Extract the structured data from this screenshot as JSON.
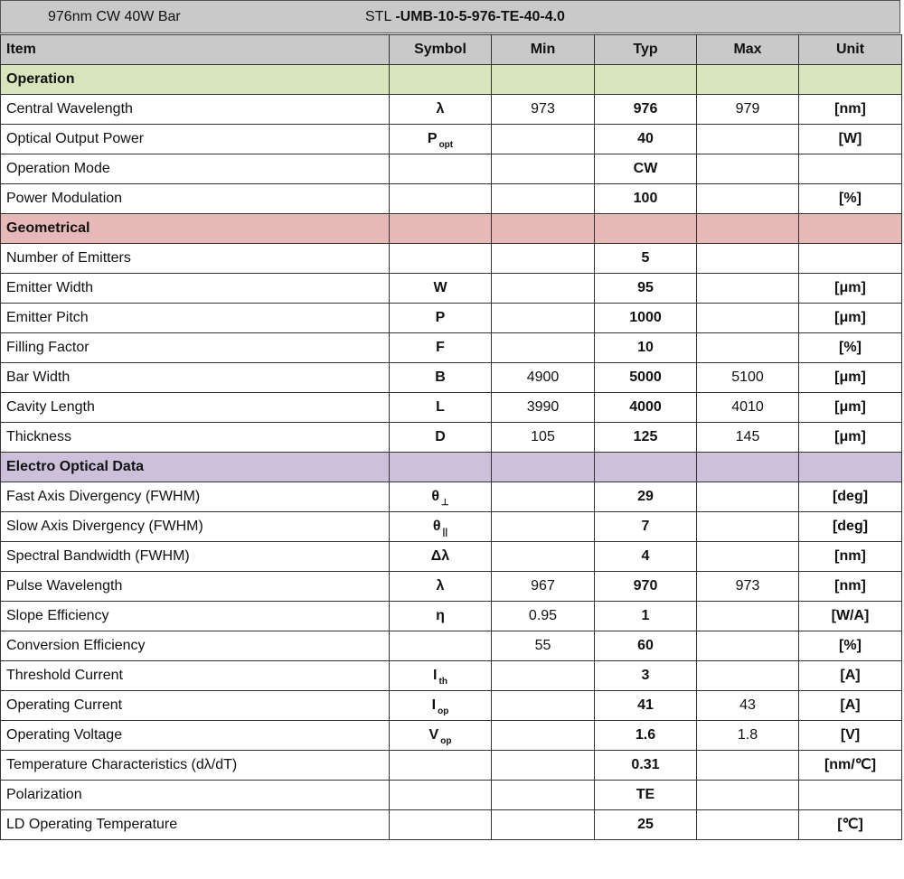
{
  "title": {
    "left": "976nm CW 40W Bar",
    "model_prefix": "STL ",
    "model": "-UMB-10-5-976-TE-40-4.0"
  },
  "columns": [
    "Item",
    "Symbol",
    "Min",
    "Typ",
    "Max",
    "Unit"
  ],
  "colors": {
    "header": "#c9c9c9",
    "operation": "#d8e4bc",
    "geometrical": "#e6b8b7",
    "electro_optical": "#ccc0da"
  },
  "rows": [
    {
      "section": "Operation",
      "color": "#d8e4bc"
    },
    {
      "item": "Central Wavelength",
      "sym": "λ",
      "sub": "",
      "min": "973",
      "typ": "976",
      "max": "979",
      "unit": "[nm]"
    },
    {
      "item": "Optical Output Power",
      "sym": "P",
      "sub": "opt",
      "min": "",
      "typ": "40",
      "max": "",
      "unit": "[W]"
    },
    {
      "item": "Operation Mode",
      "sym": "",
      "sub": "",
      "min": "",
      "typ": "CW",
      "max": "",
      "unit": ""
    },
    {
      "item": "Power Modulation",
      "sym": "",
      "sub": "",
      "min": "",
      "typ": "100",
      "max": "",
      "unit": "[%]"
    },
    {
      "section": "Geometrical",
      "color": "#e6b8b7"
    },
    {
      "item": "Number of Emitters",
      "sym": "",
      "sub": "",
      "min": "",
      "typ": "5",
      "max": "",
      "unit": ""
    },
    {
      "item": "Emitter Width",
      "sym": "W",
      "sub": "",
      "min": "",
      "typ": "95",
      "max": "",
      "unit": "[μm]"
    },
    {
      "item": "Emitter Pitch",
      "sym": "P",
      "sub": "",
      "min": "",
      "typ": "1000",
      "max": "",
      "unit": "[μm]"
    },
    {
      "item": "Filling Factor",
      "sym": "F",
      "sub": "",
      "min": "",
      "typ": "10",
      "max": "",
      "unit": "[%]"
    },
    {
      "item": "Bar Width",
      "sym": "B",
      "sub": "",
      "min": "4900",
      "typ": "5000",
      "max": "5100",
      "unit": "[μm]"
    },
    {
      "item": "Cavity Length",
      "sym": "L",
      "sub": "",
      "min": "3990",
      "typ": "4000",
      "max": "4010",
      "unit": "[μm]"
    },
    {
      "item": "Thickness",
      "sym": "D",
      "sub": "",
      "min": "105",
      "typ": "125",
      "max": "145",
      "unit": "[μm]"
    },
    {
      "section": "Electro Optical Data",
      "color": "#ccc0da"
    },
    {
      "item": "Fast Axis Divergency (FWHM)",
      "sym": "θ",
      "sub": "⊥",
      "min": "",
      "typ": "29",
      "max": "",
      "unit": "[deg]"
    },
    {
      "item": "Slow Axis Divergency (FWHM)",
      "sym": "θ",
      "sub": "||",
      "min": "",
      "typ": "7",
      "max": "",
      "unit": "[deg]"
    },
    {
      "item": "Spectral Bandwidth (FWHM)",
      "sym": "Δλ",
      "sub": "",
      "min": "",
      "typ": "4",
      "max": "",
      "unit": "[nm]"
    },
    {
      "item": "Pulse Wavelength",
      "sym": "λ",
      "sub": "",
      "min": "967",
      "typ": "970",
      "max": "973",
      "unit": "[nm]"
    },
    {
      "item": "Slope Efficiency",
      "sym": "η",
      "sub": "",
      "min": "0.95",
      "typ": "1",
      "max": "",
      "unit": "[W/A]"
    },
    {
      "item": "Conversion Efficiency",
      "sym": "",
      "sub": "",
      "min": "55",
      "typ": "60",
      "max": "",
      "unit": "[%]"
    },
    {
      "item": "Threshold Current",
      "sym": "I",
      "sub": "th",
      "min": "",
      "typ": "3",
      "max": "",
      "unit": "[A]"
    },
    {
      "item": "Operating Current",
      "sym": "I",
      "sub": "op",
      "min": "",
      "typ": "41",
      "max": "43",
      "unit": "[A]"
    },
    {
      "item": "Operating Voltage",
      "sym": "V",
      "sub": "op",
      "min": "",
      "typ": "1.6",
      "max": "1.8",
      "unit": "[V]"
    },
    {
      "item": "Temperature Characteristics (dλ/dT)",
      "sym": "",
      "sub": "",
      "min": "",
      "typ": "0.31",
      "max": "",
      "unit": "[nm/℃]"
    },
    {
      "item": "Polarization",
      "sym": "",
      "sub": "",
      "min": "",
      "typ": "TE",
      "max": "",
      "unit": ""
    },
    {
      "item": "LD Operating Temperature",
      "sym": "",
      "sub": "",
      "min": "",
      "typ": "25",
      "max": "",
      "unit": "[℃]"
    }
  ]
}
